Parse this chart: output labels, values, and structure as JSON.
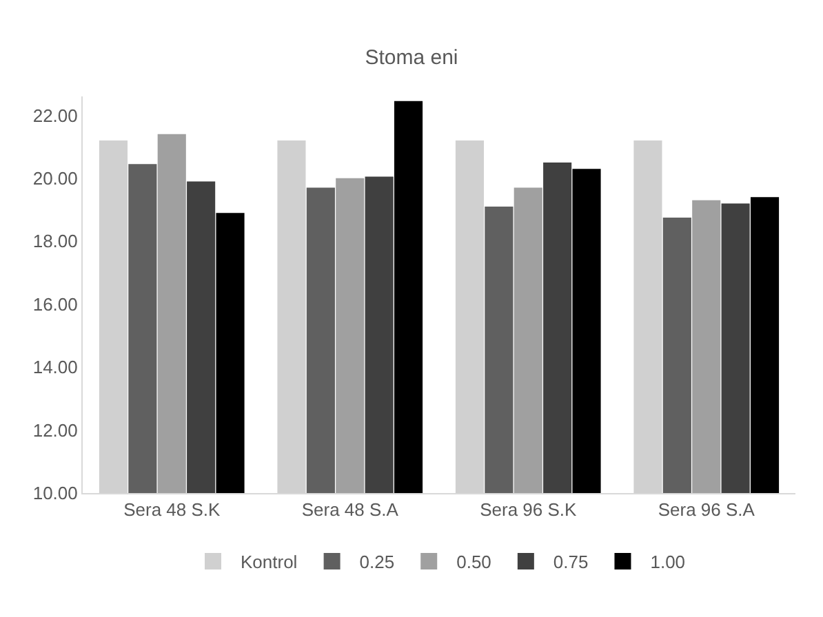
{
  "chart_data": {
    "type": "bar",
    "title": "Stoma eni",
    "categories": [
      "Sera 48 S.K",
      "Sera 48 S.A",
      "Sera 96 S.K",
      "Sera 96 S.A"
    ],
    "series": [
      {
        "name": "Kontrol",
        "color": "#d0d0d0",
        "values": [
          21.2,
          21.2,
          21.2,
          21.2
        ]
      },
      {
        "name": "0.25",
        "color": "#606060",
        "values": [
          20.45,
          19.7,
          19.1,
          18.75
        ]
      },
      {
        "name": "0.50",
        "color": "#a0a0a0",
        "values": [
          21.4,
          20.0,
          19.7,
          19.3
        ]
      },
      {
        "name": "0.75",
        "color": "#404040",
        "values": [
          19.9,
          20.05,
          20.5,
          19.2
        ]
      },
      {
        "name": "1.00",
        "color": "#000000",
        "values": [
          18.9,
          22.45,
          20.3,
          19.4
        ]
      }
    ],
    "ylim": [
      10,
      22.6
    ],
    "yticks": [
      {
        "value": 10,
        "label": "10.00"
      },
      {
        "value": 12,
        "label": "12.00"
      },
      {
        "value": 14,
        "label": "14.00"
      },
      {
        "value": 16,
        "label": "16.00"
      },
      {
        "value": 18,
        "label": "18.00"
      },
      {
        "value": 20,
        "label": "20.00"
      },
      {
        "value": 22,
        "label": "22.00"
      }
    ],
    "grid": false,
    "legend": "bottom"
  }
}
